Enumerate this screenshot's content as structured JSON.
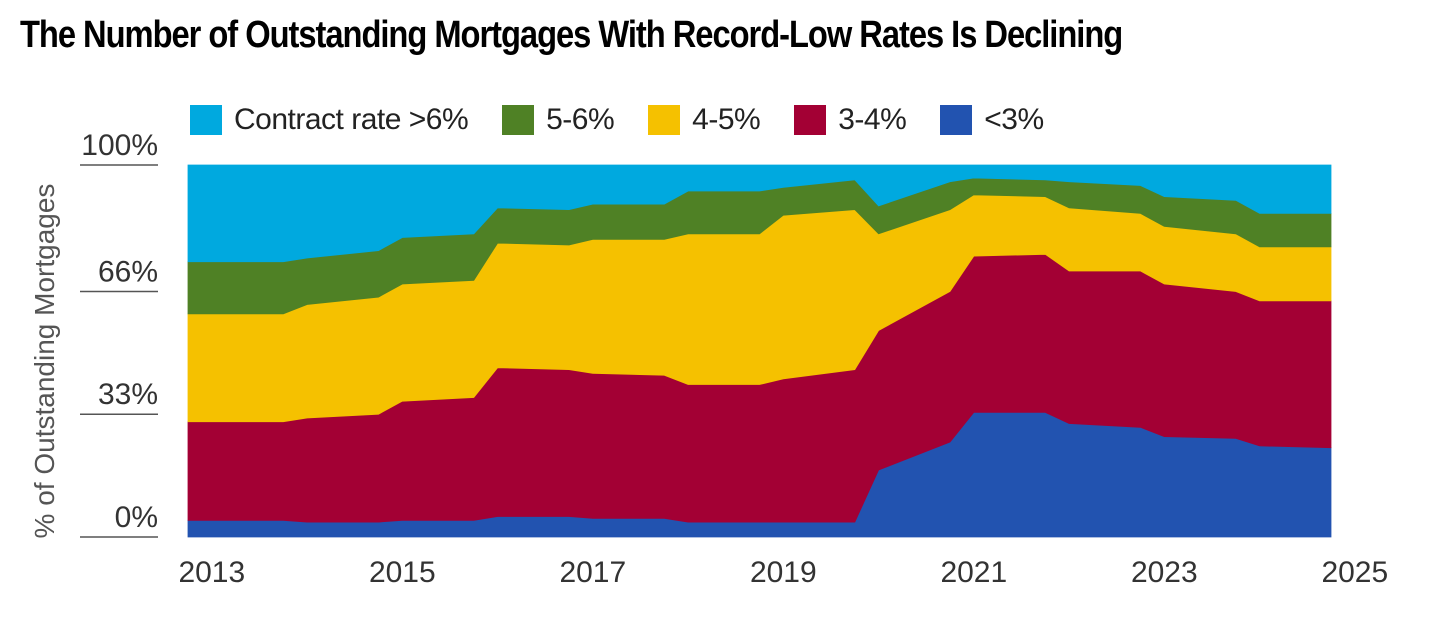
{
  "chart_data": {
    "type": "area",
    "stacked": true,
    "title": "The Number of Outstanding Mortgages With Record-Low Rates Is Declining",
    "ylabel": "% of Outstanding Mortgages",
    "xlabel": "",
    "xlim": [
      2012.75,
      2024.75
    ],
    "ylim": [
      0,
      100
    ],
    "x_ticks": [
      "2013",
      "2015",
      "2017",
      "2019",
      "2021",
      "2023",
      "2025"
    ],
    "x_tick_values": [
      2013,
      2015,
      2017,
      2019,
      2021,
      2023,
      2025
    ],
    "y_ticks": [
      "0%",
      "33%",
      "66%",
      "100%"
    ],
    "y_tick_values": [
      0,
      33,
      66,
      100
    ],
    "grid": false,
    "legend_position": "top",
    "x": [
      2012.75,
      2013.0,
      2013.75,
      2014.0,
      2014.75,
      2015.0,
      2015.75,
      2016.0,
      2016.75,
      2017.0,
      2017.75,
      2018.0,
      2018.75,
      2019.0,
      2019.75,
      2020.0,
      2020.75,
      2021.0,
      2021.75,
      2022.0,
      2022.75,
      2023.0,
      2023.75,
      2024.0,
      2024.75
    ],
    "series": [
      {
        "name": "<3%",
        "color": "#2253b0",
        "values": [
          4.5,
          4.5,
          4.5,
          4.0,
          4.0,
          4.5,
          4.5,
          5.5,
          5.5,
          5.0,
          5.0,
          4.0,
          4.0,
          4.0,
          4.0,
          18.0,
          25.5,
          33.5,
          33.5,
          30.5,
          29.5,
          27.0,
          26.5,
          24.5,
          24.0
        ]
      },
      {
        "name": "3-4%",
        "color": "#a30034",
        "values": [
          26.5,
          26.5,
          26.5,
          28.0,
          29.0,
          32.0,
          33.0,
          40.0,
          39.5,
          39.0,
          38.5,
          37.0,
          37.0,
          38.5,
          41.0,
          37.5,
          40.5,
          42.0,
          42.5,
          41.0,
          42.0,
          41.0,
          39.5,
          39.0,
          39.5
        ]
      },
      {
        "name": "4-5%",
        "color": "#f5c100",
        "values": [
          29.0,
          29.0,
          29.0,
          30.5,
          31.5,
          31.5,
          31.5,
          33.5,
          33.5,
          36.0,
          36.5,
          40.5,
          40.5,
          44.0,
          43.0,
          26.0,
          22.0,
          16.5,
          15.5,
          17.0,
          15.5,
          15.5,
          15.5,
          14.5,
          14.5
        ]
      },
      {
        "name": "5-6%",
        "color": "#4f8125",
        "values": [
          14.0,
          14.0,
          14.0,
          12.5,
          12.5,
          12.5,
          12.5,
          9.5,
          9.5,
          9.5,
          9.5,
          11.5,
          11.5,
          7.5,
          8.0,
          7.5,
          7.5,
          4.5,
          4.5,
          7.0,
          7.5,
          8.0,
          9.0,
          9.0,
          9.0
        ]
      },
      {
        "name": "Contract rate >6%",
        "color": "#00a9df",
        "values": [
          26.0,
          26.0,
          26.0,
          25.0,
          23.0,
          19.5,
          18.5,
          11.5,
          12.0,
          10.5,
          10.5,
          7.0,
          7.0,
          6.0,
          4.0,
          11.0,
          4.5,
          3.5,
          4.0,
          4.5,
          5.5,
          8.5,
          9.5,
          13.0,
          13.0
        ]
      }
    ]
  }
}
